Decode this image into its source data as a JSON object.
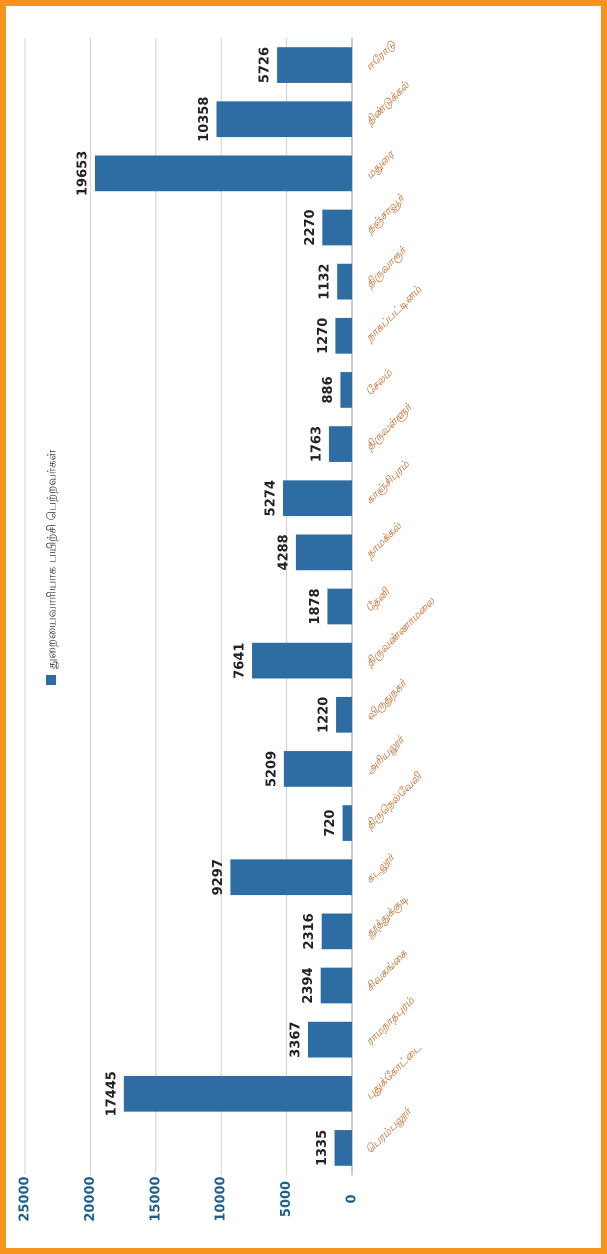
{
  "chart_data": {
    "type": "bar",
    "legend": "துறையைவாரியாக பயிற்சி பெற்றவர்கள்",
    "categories": [
      "பெரம்பலூர்",
      "புதுக்கோட்டை",
      "ராமநாதபுரம்",
      "சிவகங்கை",
      "தூத்துக்குடி",
      "கடலூர்",
      "திருநெல்வேலி",
      "அரியலூர்",
      "விருதுநகர்",
      "திருவண்ணாமலை",
      "தேனி",
      "நாமக்கல்",
      "காஞ்சிபுரம்",
      "திருவள்ளூர்",
      "சேலம்",
      "நாகப்பட்டினம்",
      "திருவாரூர்",
      "தஞ்சாவூர்",
      "மதுரை",
      "திண்டுக்கல்",
      "ஈரோடு"
    ],
    "values": [
      1335,
      17445,
      3367,
      2394,
      2316,
      9297,
      720,
      5209,
      1220,
      7641,
      1878,
      4288,
      5274,
      1763,
      886,
      1270,
      1132,
      2270,
      19653,
      10358,
      5726
    ],
    "color": "#2e6da4",
    "ylim": [
      0,
      25000
    ],
    "yticks": [
      0,
      5000,
      10000,
      15000,
      20000,
      25000
    ],
    "grid": true
  }
}
